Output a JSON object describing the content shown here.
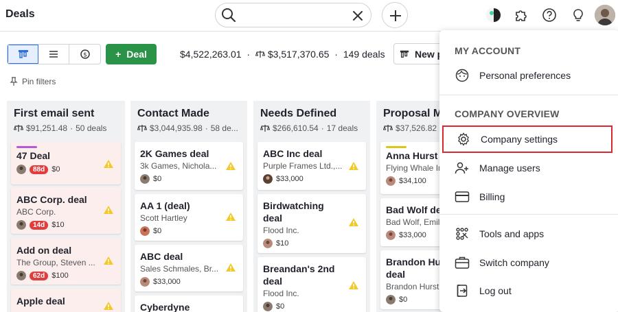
{
  "app": {
    "title": "Deals"
  },
  "search": {
    "value": "",
    "placeholder": ""
  },
  "toolbar": {
    "add_deal_label": "Deal",
    "total_value": "$4,522,263.01",
    "weighted_value": "$3,517,370.65",
    "deal_count": "149 deals",
    "new_button_label": "New p",
    "pin_filters_label": "Pin filters"
  },
  "columns": [
    {
      "title": "First email sent",
      "value": "$91,251.48",
      "count": "50 deals",
      "cards": [
        {
          "title": "47 Deal",
          "org": "",
          "badge": "88d",
          "value": "$0",
          "label_color": "#b45ad6",
          "rotten": true
        },
        {
          "title": "ABC Corp. deal",
          "org": "ABC Corp.",
          "badge": "14d",
          "value": "$10",
          "label_color": "",
          "rotten": true
        },
        {
          "title": "Add on deal",
          "org": "The Group, Steven ...",
          "badge": "62d",
          "value": "$100",
          "label_color": "",
          "rotten": true
        },
        {
          "title": "Apple deal",
          "org": "",
          "badge": "",
          "value": "",
          "label_color": "",
          "rotten": true
        }
      ]
    },
    {
      "title": "Contact Made",
      "value": "$3,044,935.98",
      "count": "58 de...",
      "cards": [
        {
          "title": "2K Games deal",
          "org": "3k Games, Nichola...",
          "value": "$0"
        },
        {
          "title": "AA 1 (deal)",
          "org": "Scott Hartley",
          "value": "$0"
        },
        {
          "title": "ABC deal",
          "org": "Sales Schmales, Br...",
          "value": "$33,000"
        },
        {
          "title": "Cyberdyne",
          "org": "",
          "value": ""
        }
      ]
    },
    {
      "title": "Needs Defined",
      "value": "$266,610.54",
      "count": "17 deals",
      "cards": [
        {
          "title": "ABC Inc deal",
          "org": "Purple Frames Ltd.,...",
          "value": "$33,000"
        },
        {
          "title_line1": "Birdwatching",
          "title_line2": "deal",
          "org": "Flood Inc.",
          "value": "$10"
        },
        {
          "title_line1": "Breandan's 2nd",
          "title_line2": "deal",
          "org": "Flood Inc.",
          "value": "$0"
        }
      ]
    },
    {
      "title": "Proposal Made",
      "value": "$37,526.82",
      "count": "",
      "cards": [
        {
          "title": "Anna Hurst deal",
          "org": "Flying Whale Inc",
          "value": "$34,100",
          "label_color": "#d9c81a"
        },
        {
          "title": "Bad Wolf deal",
          "org": "Bad Wolf, Emil",
          "value": "$33,000"
        },
        {
          "title_line1": "Brandon Hurst",
          "title_line2": "deal",
          "org": "Brandon Hurst",
          "value": "$0"
        }
      ]
    }
  ],
  "menu": {
    "section_account": "MY ACCOUNT",
    "personal_preferences": "Personal preferences",
    "section_company": "COMPANY OVERVIEW",
    "company_settings": "Company settings",
    "manage_users": "Manage users",
    "billing": "Billing",
    "tools_and_apps": "Tools and apps",
    "switch_company": "Switch company",
    "log_out": "Log out"
  },
  "colors": {
    "accent_green": "#2b9348",
    "highlight_red": "#d9282f",
    "rotten_badge": "#e03e3e"
  }
}
